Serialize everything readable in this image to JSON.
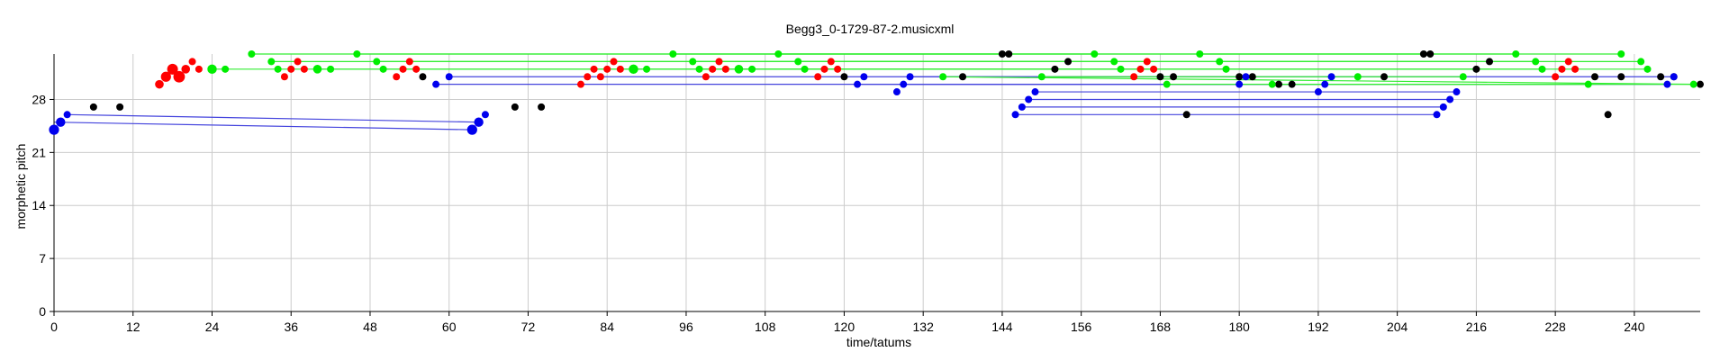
{
  "chart_data": {
    "type": "scatter",
    "title": "Begg3_0-1729-87-2.musicxml",
    "xlabel": "time/tatums",
    "ylabel": "morphetic pitch",
    "xlim": [
      0,
      250
    ],
    "ylim": [
      0,
      34
    ],
    "xticks": [
      "0",
      "12",
      "24",
      "36",
      "48",
      "60",
      "72",
      "84",
      "96",
      "108",
      "120",
      "132",
      "144",
      "156",
      "168",
      "180",
      "192",
      "204",
      "216",
      "228",
      "240"
    ],
    "yticks": [
      "0",
      "7",
      "14",
      "21",
      "28"
    ],
    "grid": true,
    "colors": {
      "red": "#ff0000",
      "green": "#00ee00",
      "blue": "#0000ee",
      "black": "#000000",
      "green_line": "#33ee33",
      "blue_line": "#4444dd",
      "grid": "#cccccc"
    },
    "series": [
      {
        "color": "black",
        "points": [
          [
            6,
            27
          ],
          [
            10,
            27
          ],
          [
            56,
            31
          ],
          [
            70,
            27
          ],
          [
            74,
            27
          ],
          [
            120,
            31
          ],
          [
            138,
            31
          ],
          [
            144,
            34
          ],
          [
            145,
            34
          ],
          [
            152,
            32
          ],
          [
            154,
            33
          ],
          [
            168,
            31
          ],
          [
            170,
            31
          ],
          [
            172,
            26
          ],
          [
            180,
            31
          ],
          [
            182,
            31
          ],
          [
            186,
            30
          ],
          [
            188,
            30
          ],
          [
            202,
            31
          ],
          [
            208,
            34
          ],
          [
            209,
            34
          ],
          [
            216,
            32
          ],
          [
            218,
            33
          ],
          [
            234,
            31
          ],
          [
            236,
            26
          ],
          [
            238,
            31
          ],
          [
            244,
            31
          ],
          [
            246,
            31
          ],
          [
            250,
            30
          ]
        ]
      },
      {
        "color": "red",
        "sized": true,
        "points": [
          [
            16,
            30,
            1.2
          ],
          [
            17,
            31,
            1.4
          ],
          [
            18,
            32,
            1.5
          ],
          [
            19,
            31,
            1.6
          ],
          [
            20,
            32,
            1.2
          ],
          [
            21,
            33,
            1
          ],
          [
            22,
            32,
            1
          ],
          [
            35,
            31,
            1
          ],
          [
            36,
            32,
            1
          ],
          [
            37,
            33,
            1
          ],
          [
            38,
            32,
            1
          ],
          [
            52,
            31,
            1
          ],
          [
            53,
            32,
            1
          ],
          [
            54,
            33,
            1
          ],
          [
            55,
            32,
            1
          ],
          [
            80,
            30,
            1
          ],
          [
            81,
            31,
            1
          ],
          [
            82,
            32,
            1
          ],
          [
            83,
            31,
            1
          ],
          [
            84,
            32,
            1
          ],
          [
            85,
            33,
            1
          ],
          [
            86,
            32,
            1
          ],
          [
            99,
            31,
            1
          ],
          [
            100,
            32,
            1
          ],
          [
            101,
            33,
            1
          ],
          [
            102,
            32,
            1
          ],
          [
            116,
            31,
            1
          ],
          [
            117,
            32,
            1
          ],
          [
            118,
            33,
            1
          ],
          [
            119,
            32,
            1
          ],
          [
            164,
            31,
            1
          ],
          [
            165,
            32,
            1
          ],
          [
            166,
            33,
            1
          ],
          [
            167,
            32,
            1
          ],
          [
            228,
            31,
            1
          ],
          [
            229,
            32,
            1
          ],
          [
            230,
            33,
            1
          ],
          [
            231,
            32,
            1
          ]
        ]
      },
      {
        "color": "green",
        "sized": true,
        "points": [
          [
            24,
            32,
            1.3
          ],
          [
            26,
            32,
            1
          ],
          [
            30,
            34,
            1
          ],
          [
            33,
            33,
            1
          ],
          [
            34,
            32,
            1
          ],
          [
            40,
            32,
            1.2
          ],
          [
            42,
            32,
            1
          ],
          [
            46,
            34,
            1
          ],
          [
            49,
            33,
            1
          ],
          [
            50,
            32,
            1
          ],
          [
            88,
            32,
            1.3
          ],
          [
            90,
            32,
            1
          ],
          [
            94,
            34,
            1
          ],
          [
            97,
            33,
            1
          ],
          [
            98,
            32,
            1
          ],
          [
            104,
            32,
            1.2
          ],
          [
            106,
            32,
            1
          ],
          [
            110,
            34,
            1
          ],
          [
            113,
            33,
            1
          ],
          [
            114,
            32,
            1
          ],
          [
            135,
            31,
            1
          ],
          [
            150,
            31,
            1
          ],
          [
            158,
            34,
            1
          ],
          [
            161,
            33,
            1
          ],
          [
            162,
            32,
            1
          ],
          [
            169,
            30,
            1
          ],
          [
            174,
            34,
            1
          ],
          [
            177,
            33,
            1
          ],
          [
            178,
            32,
            1
          ],
          [
            185,
            30,
            1
          ],
          [
            198,
            31,
            1
          ],
          [
            214,
            31,
            1
          ],
          [
            222,
            34,
            1
          ],
          [
            225,
            33,
            1
          ],
          [
            226,
            32,
            1
          ],
          [
            233,
            30,
            1
          ],
          [
            238,
            34,
            1
          ],
          [
            241,
            33,
            1
          ],
          [
            242,
            32,
            1
          ],
          [
            249,
            30,
            1
          ]
        ]
      },
      {
        "color": "blue",
        "sized": true,
        "points": [
          [
            0,
            24,
            1.4
          ],
          [
            1,
            25,
            1.3
          ],
          [
            2,
            26,
            1
          ],
          [
            60,
            31,
            1
          ],
          [
            63.5,
            24,
            1.4
          ],
          [
            64.5,
            25,
            1.3
          ],
          [
            65.5,
            26,
            1
          ],
          [
            58,
            30,
            1
          ],
          [
            122,
            30,
            1
          ],
          [
            123,
            31,
            1
          ],
          [
            128,
            29,
            1
          ],
          [
            129,
            30,
            1
          ],
          [
            130,
            31,
            1
          ],
          [
            146,
            26,
            1
          ],
          [
            147,
            27,
            1
          ],
          [
            148,
            28,
            1
          ],
          [
            149,
            29,
            1
          ],
          [
            180,
            30,
            1
          ],
          [
            181,
            31,
            1
          ],
          [
            192,
            29,
            1
          ],
          [
            193,
            30,
            1
          ],
          [
            194,
            31,
            1
          ],
          [
            210,
            26,
            1
          ],
          [
            211,
            27,
            1
          ],
          [
            212,
            28,
            1
          ],
          [
            213,
            29,
            1
          ],
          [
            245,
            30,
            1
          ],
          [
            246,
            31,
            1
          ]
        ]
      }
    ],
    "links": [
      {
        "color": "blue",
        "from": [
          2,
          26
        ],
        "to": [
          64.5,
          25
        ]
      },
      {
        "color": "blue",
        "from": [
          0,
          25
        ],
        "to": [
          63.5,
          24
        ]
      },
      {
        "color": "blue",
        "from": [
          60,
          31
        ],
        "to": [
          181,
          31
        ]
      },
      {
        "color": "blue",
        "from": [
          130,
          31
        ],
        "to": [
          246,
          31
        ]
      },
      {
        "color": "blue",
        "from": [
          149,
          29
        ],
        "to": [
          213,
          29
        ]
      },
      {
        "color": "blue",
        "from": [
          148,
          28
        ],
        "to": [
          212,
          28
        ]
      },
      {
        "color": "blue",
        "from": [
          147,
          27
        ],
        "to": [
          211,
          27
        ]
      },
      {
        "color": "blue",
        "from": [
          146,
          26
        ],
        "to": [
          210,
          26
        ]
      },
      {
        "color": "blue",
        "from": [
          122,
          30
        ],
        "to": [
          245,
          30
        ]
      },
      {
        "color": "blue",
        "from": [
          58,
          30
        ],
        "to": [
          180,
          30
        ]
      },
      {
        "color": "blue",
        "from": [
          129,
          30
        ],
        "to": [
          193,
          30
        ]
      },
      {
        "color": "green",
        "from": [
          30,
          34
        ],
        "to": [
          144,
          34
        ]
      },
      {
        "color": "green",
        "from": [
          46,
          34
        ],
        "to": [
          158,
          34
        ]
      },
      {
        "color": "green",
        "from": [
          94,
          34
        ],
        "to": [
          208,
          34
        ]
      },
      {
        "color": "green",
        "from": [
          110,
          34
        ],
        "to": [
          222,
          34
        ]
      },
      {
        "color": "green",
        "from": [
          174,
          34
        ],
        "to": [
          238,
          34
        ]
      },
      {
        "color": "green",
        "from": [
          33,
          33
        ],
        "to": [
          154,
          33
        ]
      },
      {
        "color": "green",
        "from": [
          49,
          33
        ],
        "to": [
          161,
          33
        ]
      },
      {
        "color": "green",
        "from": [
          97,
          33
        ],
        "to": [
          216,
          33
        ]
      },
      {
        "color": "green",
        "from": [
          113,
          33
        ],
        "to": [
          225,
          33
        ]
      },
      {
        "color": "green",
        "from": [
          177,
          33
        ],
        "to": [
          241,
          33
        ]
      },
      {
        "color": "green",
        "from": [
          24,
          32
        ],
        "to": [
          162,
          32
        ]
      },
      {
        "color": "green",
        "from": [
          40,
          32
        ],
        "to": [
          152,
          32
        ]
      },
      {
        "color": "green",
        "from": [
          88,
          32
        ],
        "to": [
          218,
          32
        ]
      },
      {
        "color": "green",
        "from": [
          104,
          32
        ],
        "to": [
          226,
          32
        ]
      },
      {
        "color": "green",
        "from": [
          114,
          32
        ],
        "to": [
          242,
          32
        ]
      },
      {
        "color": "green",
        "from": [
          135,
          31
        ],
        "to": [
          249,
          30
        ]
      },
      {
        "color": "green",
        "from": [
          150,
          31
        ],
        "to": [
          214,
          31
        ]
      },
      {
        "color": "green",
        "from": [
          169,
          30
        ],
        "to": [
          233,
          30
        ]
      },
      {
        "color": "green",
        "from": [
          185,
          30
        ],
        "to": [
          250,
          30
        ]
      }
    ]
  }
}
